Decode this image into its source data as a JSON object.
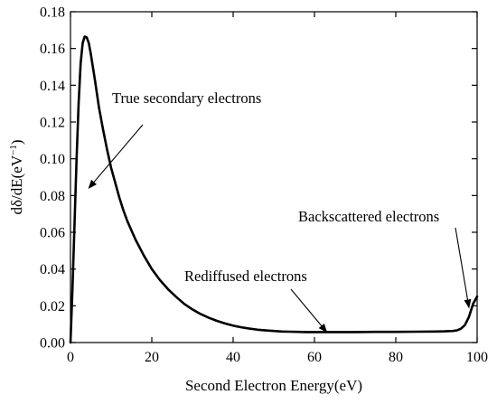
{
  "chart_data": {
    "type": "line",
    "title": "",
    "xlabel": "Second Electron Energy(eV)",
    "ylabel": "dδ/dE(eV",
    "ylabel_superscript": "−1",
    "ylabel_suffix": ")",
    "xlim": [
      0,
      100
    ],
    "ylim": [
      0,
      0.18
    ],
    "x_ticks": [
      "0",
      "20",
      "40",
      "60",
      "80",
      "100"
    ],
    "y_ticks": [
      "0.00",
      "0.02",
      "0.04",
      "0.06",
      "0.08",
      "0.10",
      "0.12",
      "0.14",
      "0.16",
      "0.18"
    ],
    "grid": false,
    "legend": "none",
    "series_color": "#000000",
    "series": [
      {
        "x": [
          0,
          0.5,
          1,
          1.5,
          2,
          2.5,
          3,
          3.5,
          4,
          4.5,
          5,
          5.5,
          6,
          7,
          8,
          9,
          10,
          11,
          12,
          13,
          14,
          15,
          16,
          18,
          20,
          22,
          24,
          26,
          28,
          30,
          32,
          34,
          36,
          38,
          40,
          42,
          44,
          46,
          48,
          50,
          52,
          54,
          56,
          58,
          60,
          65,
          70,
          75,
          80,
          85,
          90,
          92,
          94,
          95,
          96,
          97,
          98,
          99,
          100
        ],
        "y": [
          0,
          0.03,
          0.065,
          0.1,
          0.13,
          0.152,
          0.163,
          0.1665,
          0.166,
          0.163,
          0.157,
          0.15,
          0.143,
          0.128,
          0.116,
          0.105,
          0.095,
          0.087,
          0.079,
          0.072,
          0.066,
          0.061,
          0.056,
          0.0475,
          0.04,
          0.034,
          0.029,
          0.0248,
          0.021,
          0.018,
          0.0155,
          0.0135,
          0.0118,
          0.0104,
          0.0092,
          0.0083,
          0.0076,
          0.007,
          0.0066,
          0.0063,
          0.006,
          0.0059,
          0.0058,
          0.0057,
          0.0057,
          0.0057,
          0.0057,
          0.0058,
          0.0058,
          0.0059,
          0.006,
          0.0061,
          0.0063,
          0.0066,
          0.0075,
          0.0095,
          0.014,
          0.021,
          0.025
        ]
      }
    ],
    "annotations": [
      {
        "text": "True secondary electrons",
        "points_to": [
          4.5,
          0.084
        ]
      },
      {
        "text": "Rediffused  electrons",
        "points_to": [
          63,
          0.0057
        ]
      },
      {
        "text": "Backscattered electrons",
        "points_to": [
          98,
          0.019
        ]
      }
    ]
  }
}
